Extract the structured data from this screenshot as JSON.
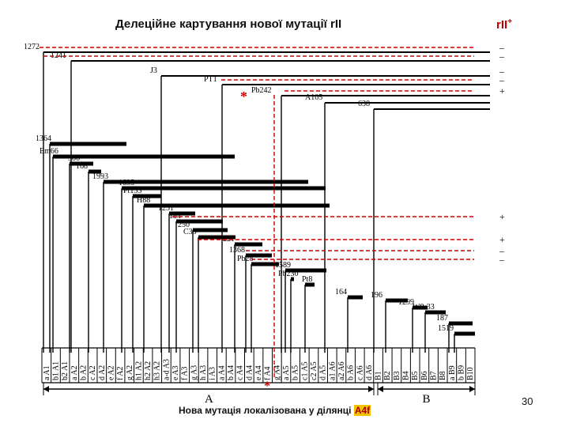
{
  "header": {
    "title": "Делеційне картування нової мутації rII",
    "result_label": "rII",
    "result_sup": "+"
  },
  "caption": {
    "prefix": "Нова мутація локалізована у ділянці ",
    "segment": "A4f"
  },
  "slide_number": "30",
  "colors": {
    "marker": "#cc0000",
    "highlight": "#f0c400",
    "bar": "#000000"
  },
  "star_mark": "*",
  "regions": [
    "A",
    "B"
  ],
  "segments": [
    "a A1",
    "b1 A1",
    "b2 A1",
    "a A2",
    "b A2",
    "c A2",
    "d A2",
    "e A2",
    "f A2",
    "g A2",
    "h1 A2",
    "h2 A2",
    "h3 A2",
    "a-d A3",
    "e A3",
    "f A3",
    "g A3",
    "h A3",
    "i A3",
    "a A4",
    "b A4",
    "c A4",
    "d A4",
    "e A4",
    "f A4",
    "g A4",
    "a A5",
    "b A5",
    "c1 A5",
    "c2 A5",
    "d A5",
    "a1 A6",
    "a2 A6",
    "b A6",
    "c A6",
    "d A6",
    "B1",
    "B2",
    "B3",
    "B4",
    "B5",
    "B6",
    "B7",
    "B8",
    "a B9",
    "b B9",
    "B10"
  ],
  "deletions": [
    {
      "name": "1272",
      "result": "–"
    },
    {
      "name": "1241",
      "result": "–"
    },
    {
      "name": "J3",
      "result": "–"
    },
    {
      "name": "PT1",
      "result": "–"
    },
    {
      "name": "Pb242",
      "result": "+"
    },
    {
      "name": "A105",
      "result": ""
    },
    {
      "name": "638",
      "result": ""
    },
    {
      "name": "1364"
    },
    {
      "name": "Em66"
    },
    {
      "name": "386"
    },
    {
      "name": "168"
    },
    {
      "name": "1993"
    },
    {
      "name": "1695"
    },
    {
      "name": "Pt153"
    },
    {
      "name": "H88"
    },
    {
      "name": "1231"
    },
    {
      "name": "184",
      "result": "+"
    },
    {
      "name": "250"
    },
    {
      "name": "C33"
    },
    {
      "name": "221",
      "result": "+"
    },
    {
      "name": "1368",
      "result": "–"
    },
    {
      "name": "Pb28",
      "result": "–"
    },
    {
      "name": "1589"
    },
    {
      "name": "Pb230"
    },
    {
      "name": "Pt8"
    },
    {
      "name": "164"
    },
    {
      "name": "196"
    },
    {
      "name": "1299"
    },
    {
      "name": "W8-33"
    },
    {
      "name": "187"
    },
    {
      "name": "1519"
    }
  ]
}
